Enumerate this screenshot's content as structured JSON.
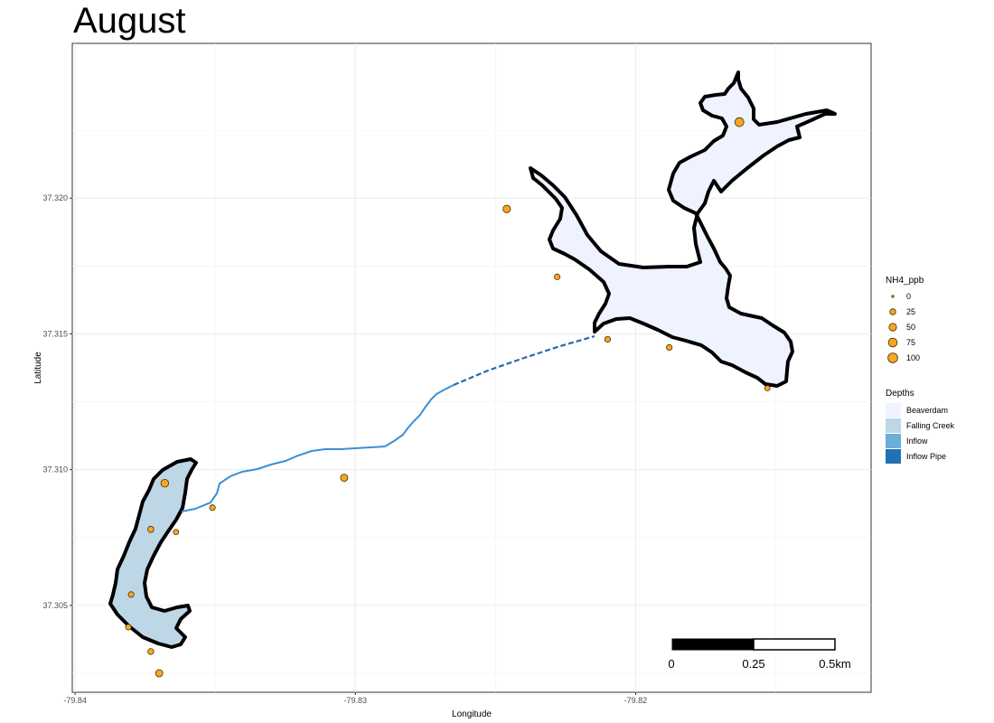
{
  "title": "August",
  "chart_data": {
    "type": "scatter",
    "title": "August",
    "xlabel": "Longitude",
    "ylabel": "Latitude",
    "xlim": [
      -79.8401,
      -79.8116
    ],
    "ylim": [
      37.3018,
      37.3257
    ],
    "x_ticks": [
      {
        "value": -79.84,
        "label": "-79.84"
      },
      {
        "value": -79.83,
        "label": "-79.83"
      },
      {
        "value": -79.82,
        "label": "-79.82"
      }
    ],
    "y_ticks": [
      {
        "value": 37.305,
        "label": "37.305"
      },
      {
        "value": 37.31,
        "label": "37.310"
      },
      {
        "value": 37.315,
        "label": "37.315"
      },
      {
        "value": 37.32,
        "label": "37.320"
      }
    ],
    "grid": true,
    "size_legend": {
      "title": "NH4_ppb",
      "entries": [
        {
          "label": "0",
          "value": 0
        },
        {
          "label": "25",
          "value": 25
        },
        {
          "label": "50",
          "value": 50
        },
        {
          "label": "75",
          "value": 75
        },
        {
          "label": "100",
          "value": 100
        }
      ]
    },
    "fill_legend": {
      "title": "Depths",
      "entries": [
        {
          "label": "Beaverdam",
          "color": "#eff3ff"
        },
        {
          "label": "Falling Creek",
          "color": "#bdd7e7"
        },
        {
          "label": "Inflow",
          "color": "#6baed6"
        },
        {
          "label": "Inflow Pipe",
          "color": "#2171b5"
        }
      ]
    },
    "points": [
      {
        "lon": -79.8163,
        "lat": 37.3228,
        "nh4": 80
      },
      {
        "lon": -79.8246,
        "lat": 37.3196,
        "nh4": 50
      },
      {
        "lon": -79.8228,
        "lat": 37.3171,
        "nh4": 22
      },
      {
        "lon": -79.821,
        "lat": 37.3148,
        "nh4": 22
      },
      {
        "lon": -79.8188,
        "lat": 37.3145,
        "nh4": 22
      },
      {
        "lon": -79.8153,
        "lat": 37.313,
        "nh4": 18
      },
      {
        "lon": -79.8304,
        "lat": 37.3097,
        "nh4": 45
      },
      {
        "lon": -79.8351,
        "lat": 37.3086,
        "nh4": 22
      },
      {
        "lon": -79.8364,
        "lat": 37.3077,
        "nh4": 18
      },
      {
        "lon": -79.8368,
        "lat": 37.3095,
        "nh4": 55
      },
      {
        "lon": -79.8373,
        "lat": 37.3078,
        "nh4": 28
      },
      {
        "lon": -79.838,
        "lat": 37.3054,
        "nh4": 22
      },
      {
        "lon": -79.8381,
        "lat": 37.3042,
        "nh4": 22
      },
      {
        "lon": -79.8373,
        "lat": 37.3033,
        "nh4": 25
      },
      {
        "lon": -79.837,
        "lat": 37.3025,
        "nh4": 45
      }
    ],
    "scale_bar": {
      "labels": [
        "0",
        "0.25",
        "0.5km"
      ]
    }
  },
  "colors": {
    "point_fill": "#f5a623",
    "point_stroke": "#4d3000",
    "outline": "#000000",
    "stream": "#3a8fd8",
    "pipe": "#2a6aa8",
    "beaverdam_fill": "#eff3ff",
    "falling_creek_fill": "#bdd7e7"
  }
}
